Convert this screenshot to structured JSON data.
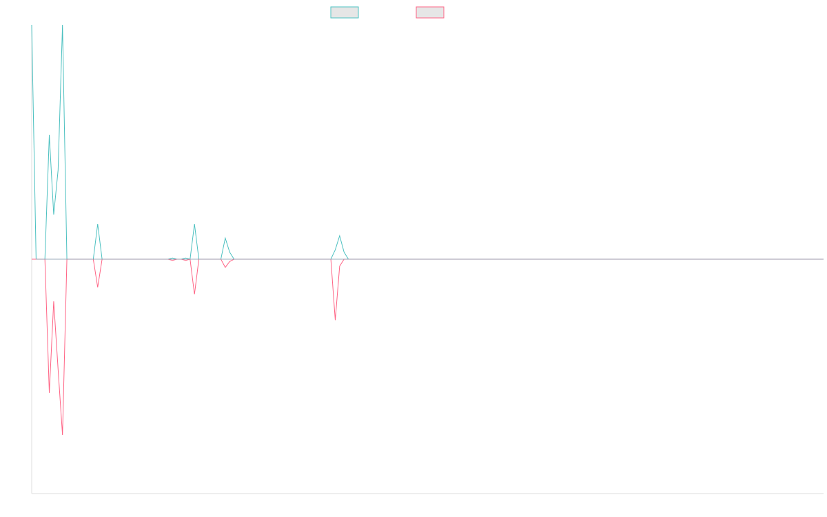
{
  "chart_data": {
    "type": "line",
    "title": "",
    "xlabel": "",
    "ylabel": "",
    "grid": false,
    "legend_position": "top",
    "x_count": 181,
    "ylim": [
      -1,
      1
    ],
    "series": [
      {
        "color": "#4bc0c0",
        "fill_color": "#e6e6e6",
        "points": [
          [
            0,
            1.0
          ],
          [
            1,
            0.0
          ],
          [
            2,
            0.0
          ],
          [
            3,
            0.0
          ],
          [
            4,
            0.53
          ],
          [
            5,
            0.19
          ],
          [
            6,
            0.38
          ],
          [
            7,
            1.0
          ],
          [
            8,
            0.0
          ],
          [
            14,
            0.0
          ],
          [
            15,
            0.15
          ],
          [
            16,
            0.0
          ],
          [
            31,
            0.0
          ],
          [
            32,
            0.005
          ],
          [
            33,
            0.0
          ],
          [
            34,
            0.0
          ],
          [
            35,
            0.005
          ],
          [
            36,
            0.0
          ],
          [
            37,
            0.15
          ],
          [
            38,
            0.0
          ],
          [
            43,
            0.0
          ],
          [
            44,
            0.09
          ],
          [
            45,
            0.03
          ],
          [
            46,
            0.0
          ],
          [
            68,
            0.0
          ],
          [
            69,
            0.04
          ],
          [
            70,
            0.1
          ],
          [
            71,
            0.03
          ],
          [
            72,
            0.0
          ],
          [
            180,
            0.0
          ]
        ]
      },
      {
        "color": "#ff6384",
        "fill_color": "#e6e6e6",
        "points": [
          [
            0,
            0.0
          ],
          [
            1,
            0.0
          ],
          [
            2,
            0.0
          ],
          [
            3,
            0.0
          ],
          [
            4,
            -0.57
          ],
          [
            5,
            -0.18
          ],
          [
            6,
            -0.47
          ],
          [
            7,
            -0.75
          ],
          [
            8,
            0.0
          ],
          [
            14,
            0.0
          ],
          [
            15,
            -0.12
          ],
          [
            16,
            0.0
          ],
          [
            31,
            0.0
          ],
          [
            32,
            -0.005
          ],
          [
            33,
            0.0
          ],
          [
            34,
            0.0
          ],
          [
            35,
            -0.005
          ],
          [
            36,
            0.0
          ],
          [
            37,
            -0.15
          ],
          [
            38,
            0.0
          ],
          [
            43,
            0.0
          ],
          [
            44,
            -0.035
          ],
          [
            45,
            -0.01
          ],
          [
            46,
            0.0
          ],
          [
            68,
            0.0
          ],
          [
            69,
            -0.26
          ],
          [
            70,
            -0.03
          ],
          [
            71,
            0.0
          ],
          [
            72,
            0.0
          ],
          [
            180,
            0.0
          ]
        ]
      }
    ],
    "axis_color": "#dddddd",
    "zero_line_color": "#8a9db0"
  }
}
